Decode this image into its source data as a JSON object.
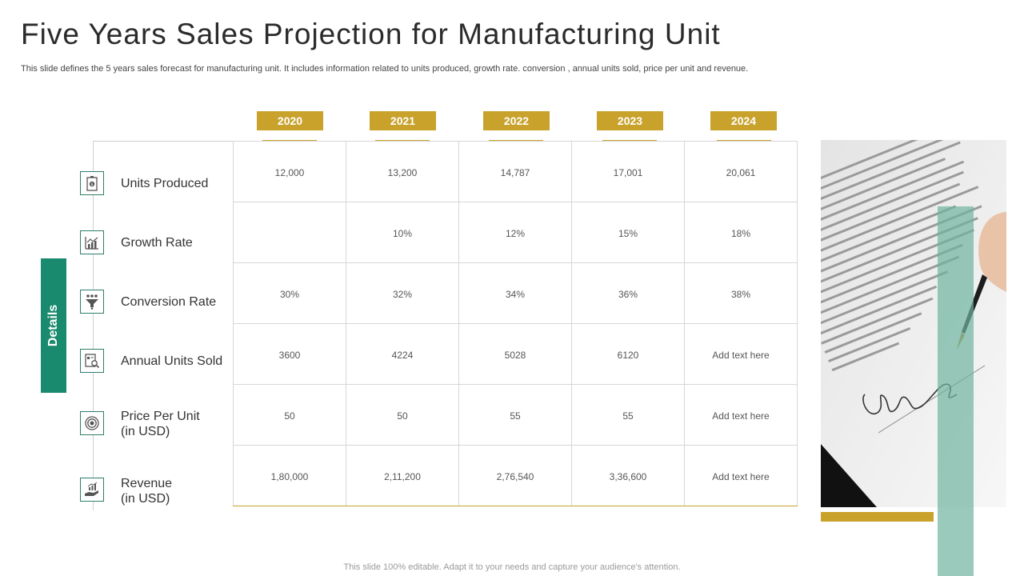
{
  "title": "Five Years Sales Projection for Manufacturing Unit",
  "subtitle": "This slide defines the 5 years sales forecast for manufacturing unit. It includes information related to units produced, growth rate. conversion , annual units sold, price per unit and revenue.",
  "years": [
    "2020",
    "2021",
    "2022",
    "2023",
    "2024"
  ],
  "details_label": "Details",
  "rows": [
    {
      "label": "Units Produced",
      "icon": "building-dollar-icon",
      "values": [
        "12,000",
        "13,200",
        "14,787",
        "17,001",
        "20,061"
      ]
    },
    {
      "label": "Growth Rate",
      "icon": "bar-chart-growth-icon",
      "values": [
        "",
        "10%",
        "12%",
        "15%",
        "18%"
      ]
    },
    {
      "label": "Conversion Rate",
      "icon": "funnel-people-icon",
      "values": [
        "30%",
        "32%",
        "34%",
        "36%",
        "38%"
      ]
    },
    {
      "label": "Annual Units Sold",
      "icon": "report-magnifier-icon",
      "values": [
        "3600",
        "4224",
        "5028",
        "6120",
        "Add text here"
      ]
    },
    {
      "label": "Price Per Unit",
      "label2": "(in USD)",
      "icon": "price-target-icon",
      "values": [
        "50",
        "50",
        "55",
        "55",
        "Add text here"
      ]
    },
    {
      "label": "Revenue",
      "label2": "(in USD)",
      "icon": "hand-money-growth-icon",
      "values": [
        "1,80,000",
        "2,11,200",
        "2,76,540",
        "3,36,600",
        "Add text here"
      ]
    }
  ],
  "footer": "This slide 100% editable. Adapt it to your needs and capture your audience's attention.",
  "colors": {
    "gold": "#c9a22c",
    "teal": "#1a8a6e",
    "icon_border": "#2e7d6a"
  }
}
